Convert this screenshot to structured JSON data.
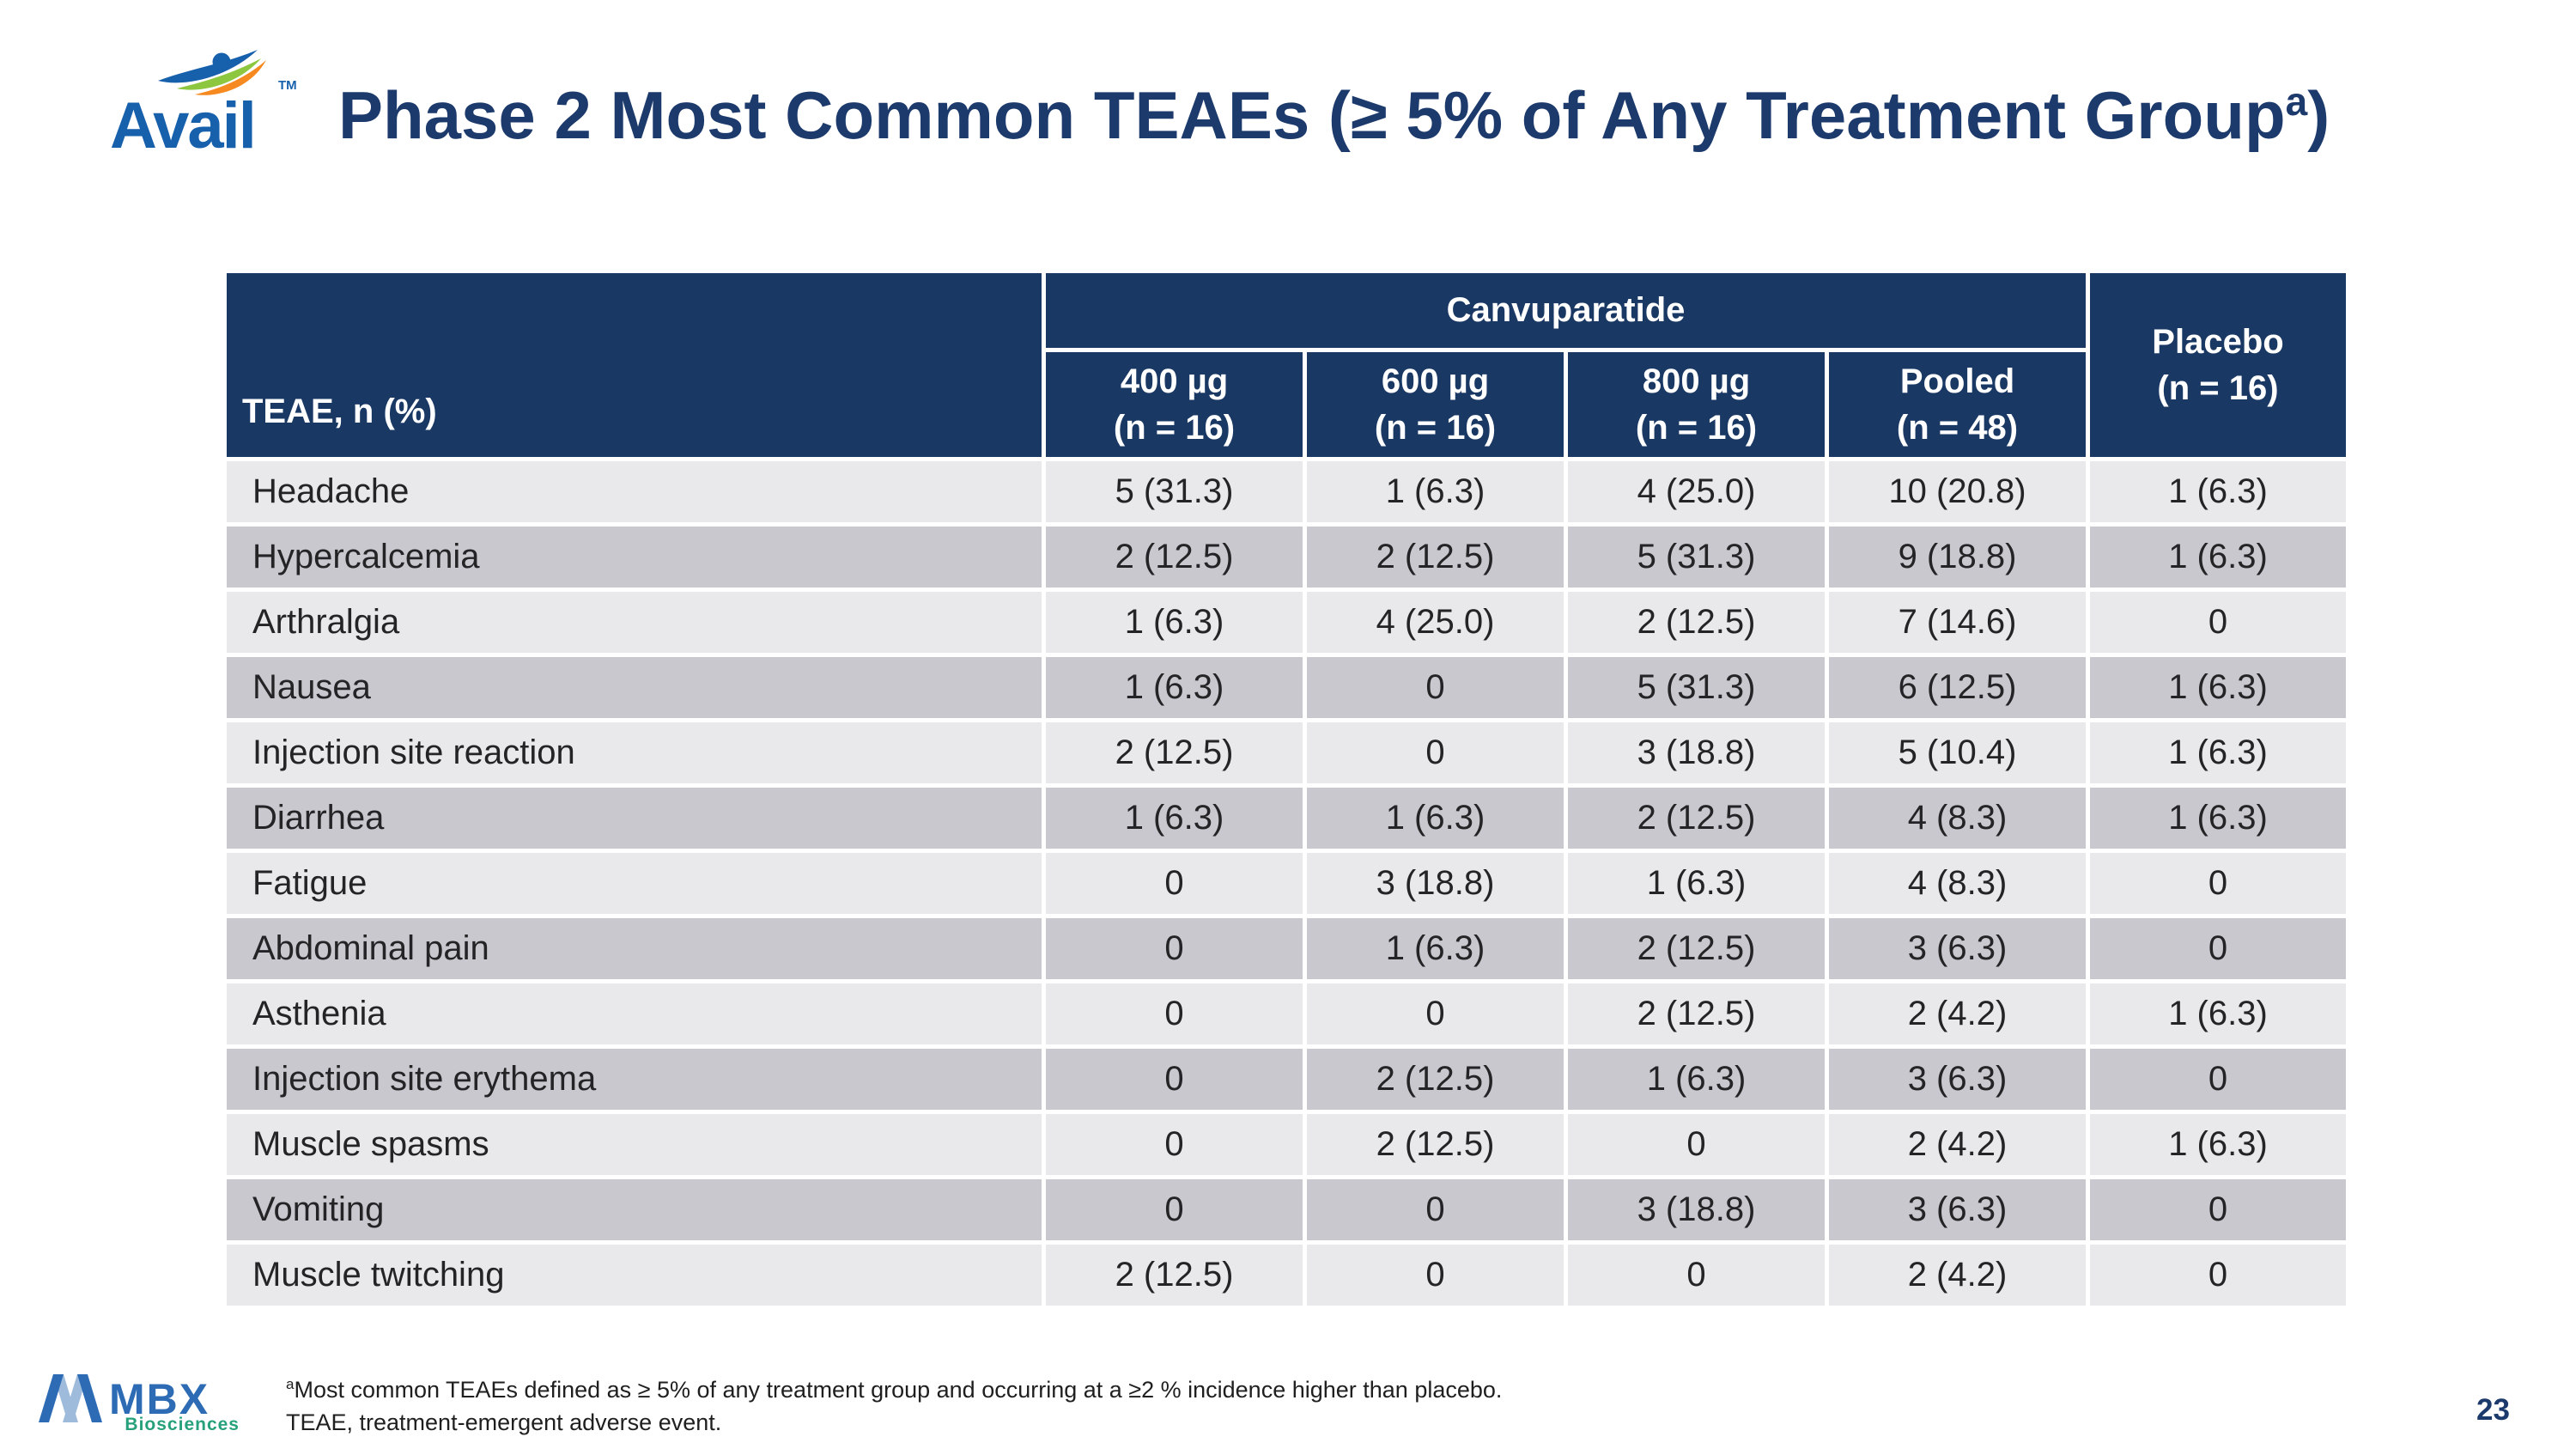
{
  "header": {
    "logo": {
      "brand": "Avail",
      "trademark": "TM"
    },
    "title_prefix": "Phase 2 Most Common TEAEs (≥ 5% of Any Treatment Group",
    "title_superscript": "a",
    "title_suffix": ")"
  },
  "table": {
    "row_header": "TEAE, n (%)",
    "group_header": "Canvuparatide",
    "dose_columns": [
      {
        "label": "400 µg",
        "n": "(n = 16)"
      },
      {
        "label": "600 µg",
        "n": "(n = 16)"
      },
      {
        "label": "800 µg",
        "n": "(n = 16)"
      },
      {
        "label": "Pooled",
        "n": "(n = 48)"
      }
    ],
    "placebo_column": {
      "label": "Placebo",
      "n": "(n = 16)"
    },
    "rows": [
      {
        "teae": "Headache",
        "values": [
          "5 (31.3)",
          "1 (6.3)",
          "4 (25.0)",
          "10 (20.8)",
          "1 (6.3)"
        ]
      },
      {
        "teae": "Hypercalcemia",
        "values": [
          "2 (12.5)",
          "2 (12.5)",
          "5 (31.3)",
          "9 (18.8)",
          "1 (6.3)"
        ]
      },
      {
        "teae": "Arthralgia",
        "values": [
          "1 (6.3)",
          "4 (25.0)",
          "2 (12.5)",
          "7 (14.6)",
          "0"
        ]
      },
      {
        "teae": "Nausea",
        "values": [
          "1 (6.3)",
          "0",
          "5 (31.3)",
          "6 (12.5)",
          "1 (6.3)"
        ]
      },
      {
        "teae": "Injection site reaction",
        "values": [
          "2 (12.5)",
          "0",
          "3 (18.8)",
          "5 (10.4)",
          "1 (6.3)"
        ]
      },
      {
        "teae": "Diarrhea",
        "values": [
          "1 (6.3)",
          "1 (6.3)",
          "2 (12.5)",
          "4 (8.3)",
          "1 (6.3)"
        ]
      },
      {
        "teae": "Fatigue",
        "values": [
          "0",
          "3 (18.8)",
          "1 (6.3)",
          "4 (8.3)",
          "0"
        ]
      },
      {
        "teae": "Abdominal pain",
        "values": [
          "0",
          "1 (6.3)",
          "2 (12.5)",
          "3 (6.3)",
          "0"
        ]
      },
      {
        "teae": "Asthenia",
        "values": [
          "0",
          "0",
          "2 (12.5)",
          "2 (4.2)",
          "1 (6.3)"
        ]
      },
      {
        "teae": "Injection site erythema",
        "values": [
          "0",
          "2 (12.5)",
          "1 (6.3)",
          "3 (6.3)",
          "0"
        ]
      },
      {
        "teae": "Muscle spasms",
        "values": [
          "0",
          "2 (12.5)",
          "0",
          "2 (4.2)",
          "1 (6.3)"
        ]
      },
      {
        "teae": "Vomiting",
        "values": [
          "0",
          "0",
          "3 (18.8)",
          "3 (6.3)",
          "0"
        ]
      },
      {
        "teae": "Muscle twitching",
        "values": [
          "2 (12.5)",
          "0",
          "0",
          "2 (4.2)",
          "0"
        ]
      }
    ]
  },
  "footer": {
    "footnote_superscript": "a",
    "footnote_line1": "Most common TEAEs defined as ≥ 5% of any treatment group and occurring at a ≥2 % incidence higher than placebo.",
    "footnote_line2": "TEAE, treatment-emergent adverse event.",
    "mbx_brand": "MBX",
    "mbx_sub": "Biosciences",
    "page_number": "23"
  },
  "colors": {
    "navy": "#1a3864",
    "title_navy": "#1c3a6b",
    "row_light": "#e9e9eb",
    "row_dark": "#c9c8cf",
    "avail_blue": "#1760ac",
    "avail_green": "#8dc63f",
    "avail_orange": "#f6891f",
    "mbx_blue": "#2d6cb4",
    "mbx_light_blue": "#9fbbdc",
    "mbx_green": "#27a17c"
  }
}
